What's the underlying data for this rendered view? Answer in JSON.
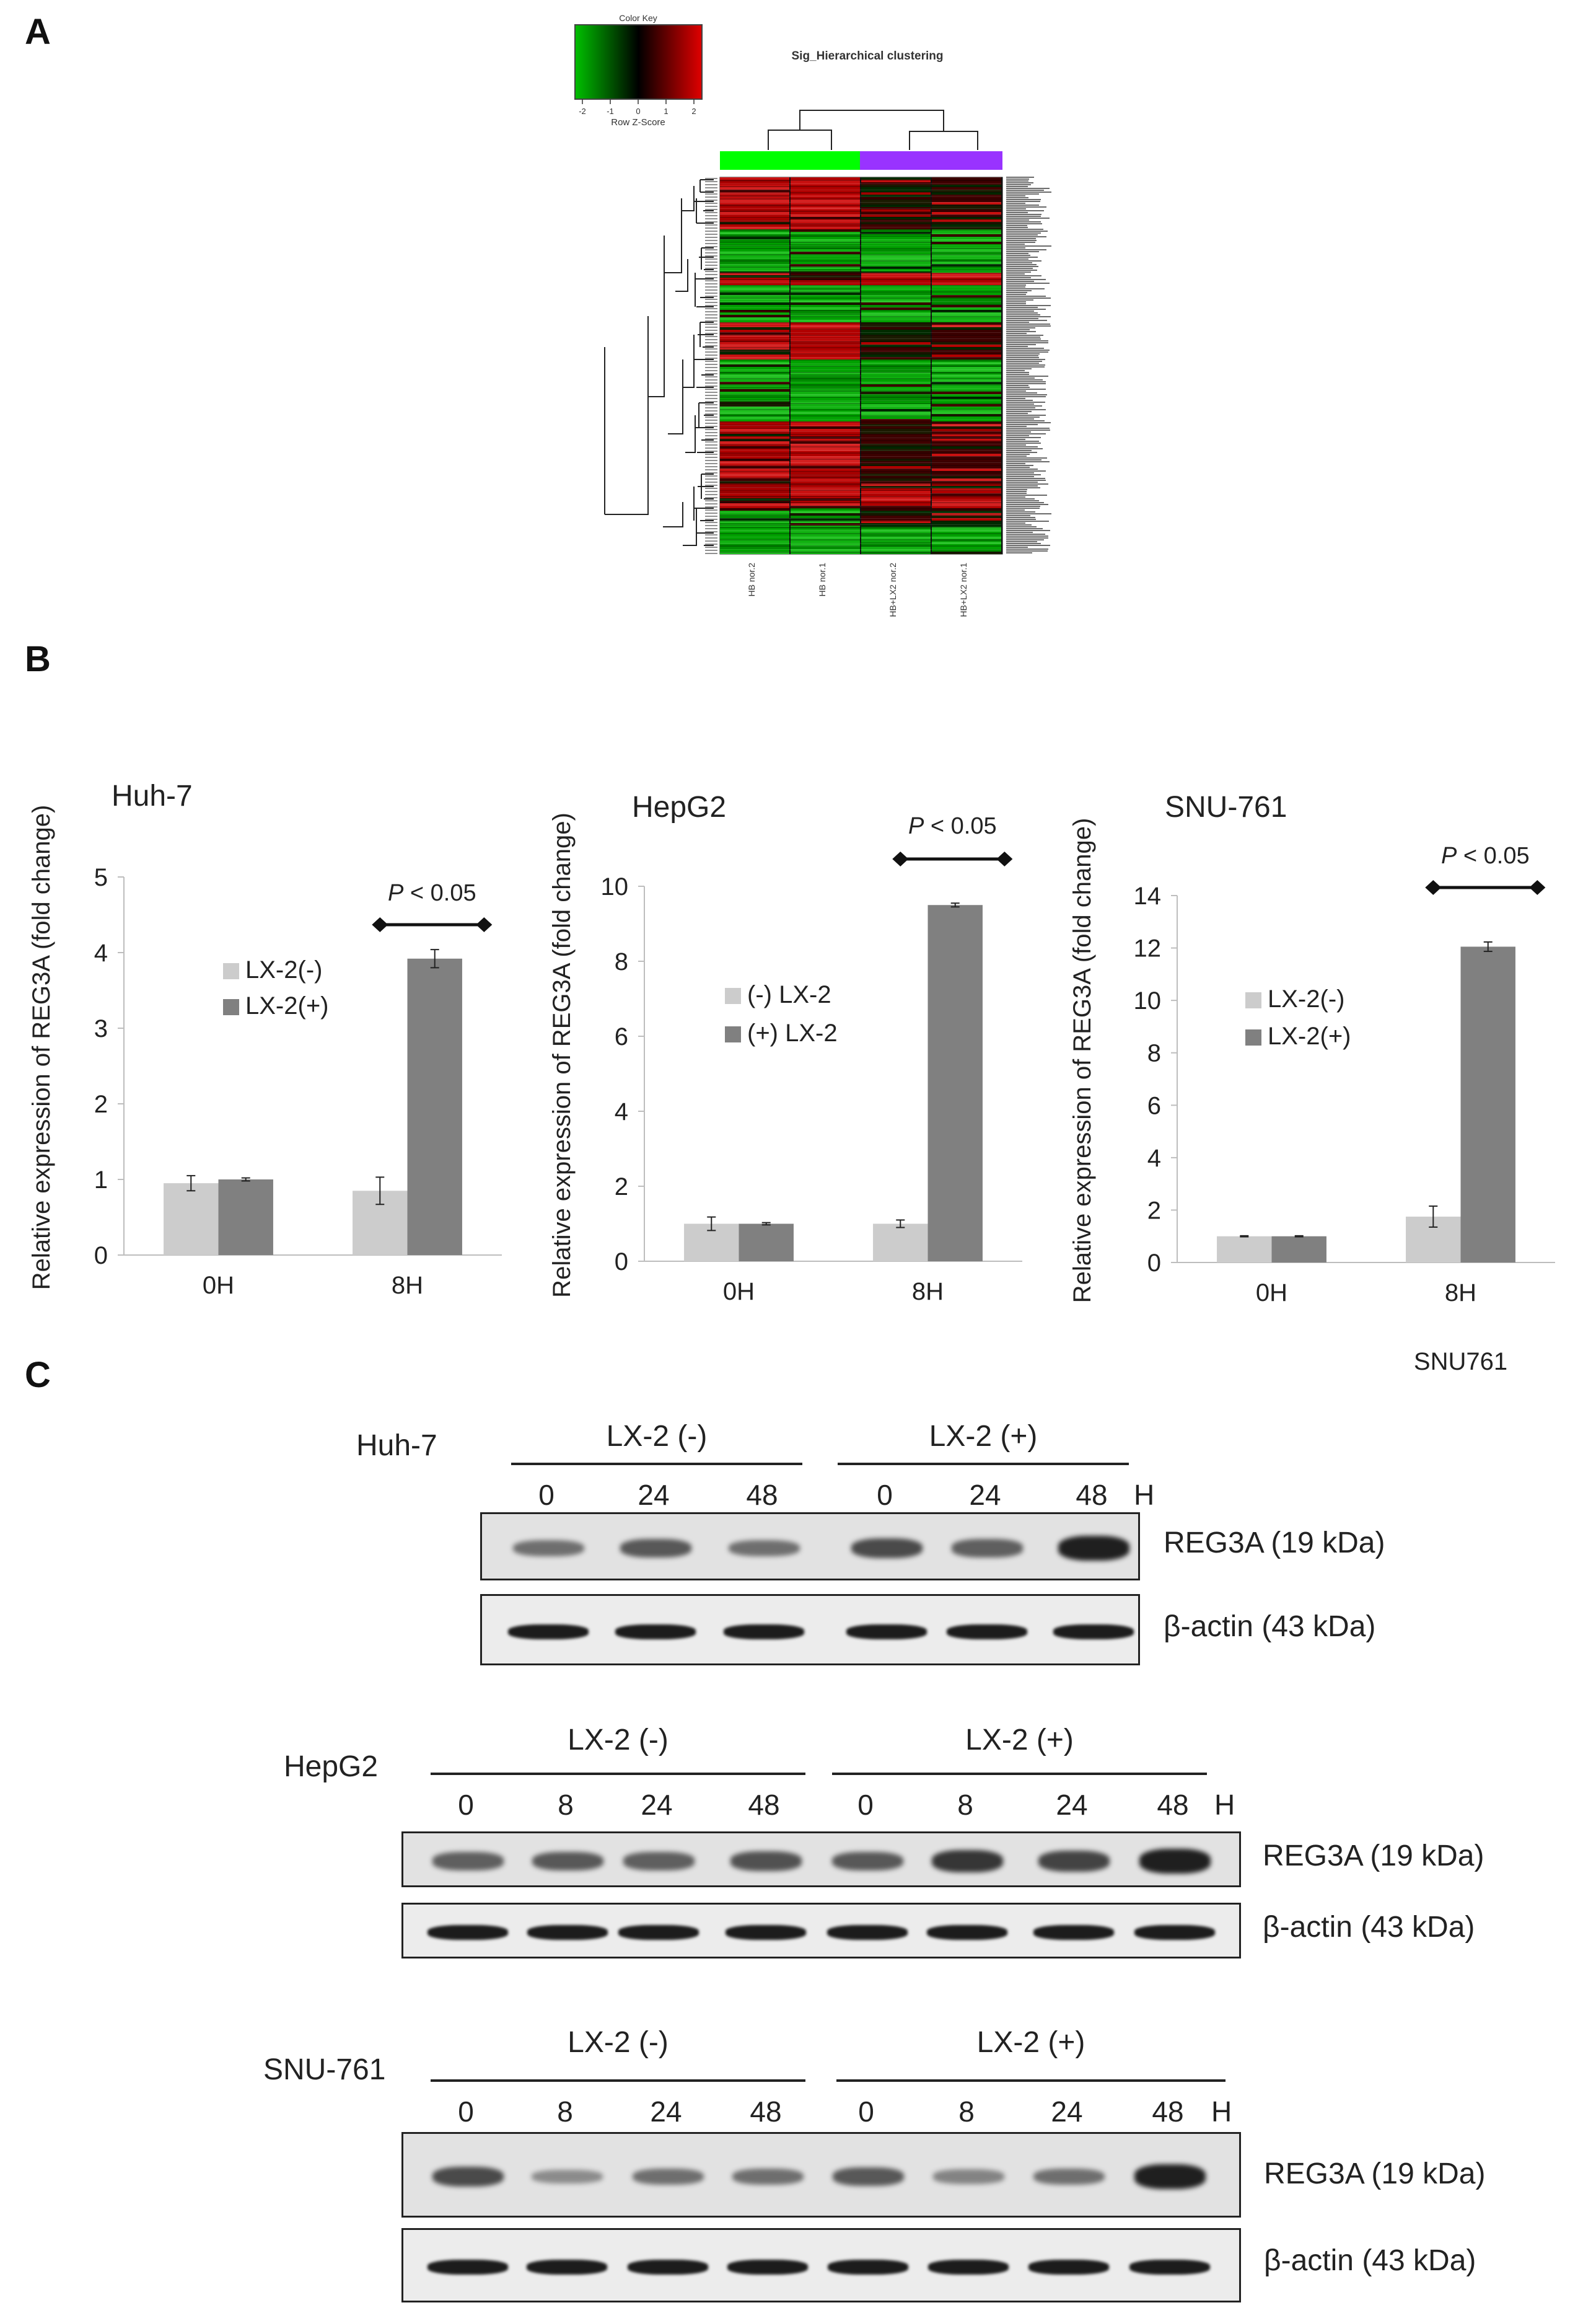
{
  "panels": {
    "A": "A",
    "B": "B",
    "C": "C"
  },
  "heatmap": {
    "color_key_title": "Color Key",
    "color_key_ticks": [
      "-2",
      "-1",
      "0",
      "1",
      "2"
    ],
    "color_key_label": "Row Z-Score",
    "title": "Sig_Hierarchical clustering",
    "columns": [
      "HB nor.2",
      "HB nor.1",
      "HB+LX2 nor.2",
      "HB+LX2 nor.1"
    ],
    "group_colors": [
      "#00ff00",
      "#9933ff"
    ],
    "colors": {
      "low": "#00c000",
      "mid": "#000000",
      "high": "#e00000"
    }
  },
  "chart_data": [
    {
      "type": "bar",
      "title": "Huh-7",
      "ylabel": "Relative expression of REG3A (fold change)",
      "xlabel": "",
      "categories": [
        "0H",
        "8H"
      ],
      "ylim": [
        0,
        5
      ],
      "yticks": [
        "0",
        "1",
        "2",
        "3",
        "4",
        "5"
      ],
      "series": [
        {
          "name": "LX-2(-)",
          "values": [
            0.95,
            0.85
          ],
          "errors": [
            0.1,
            0.18
          ],
          "color": "#cccccc"
        },
        {
          "name": "LX-2(+)",
          "values": [
            1.0,
            3.92
          ],
          "errors": [
            0.02,
            0.12
          ],
          "color": "#808080"
        }
      ],
      "annotation": {
        "p": "P",
        "rest": " < 0.05"
      },
      "legend_position": "upper-left"
    },
    {
      "type": "bar",
      "title": "HepG2",
      "ylabel": "Relative expression of REG3A (fold change)",
      "xlabel": "",
      "categories": [
        "0H",
        "8H"
      ],
      "ylim": [
        0,
        10
      ],
      "yticks": [
        "0",
        "2",
        "4",
        "6",
        "8",
        "10"
      ],
      "series": [
        {
          "name": "(-) LX-2",
          "values": [
            1.0,
            1.0
          ],
          "errors": [
            0.18,
            0.1
          ],
          "color": "#cccccc"
        },
        {
          "name": "(+) LX-2",
          "values": [
            1.0,
            9.5
          ],
          "errors": [
            0.03,
            0.05
          ],
          "color": "#808080"
        }
      ],
      "annotation": {
        "p": "P",
        "rest": " < 0.05"
      },
      "legend_position": "upper-left"
    },
    {
      "type": "bar",
      "title": "SNU-761",
      "ylabel": "Relative expression of REG3A (fold change)",
      "xlabel": "SNU761",
      "categories": [
        "0H",
        "8H"
      ],
      "ylim": [
        0,
        14
      ],
      "yticks": [
        "0",
        "2",
        "4",
        "6",
        "8",
        "10",
        "12",
        "14"
      ],
      "series": [
        {
          "name": "LX-2(-)",
          "values": [
            1.0,
            1.75
          ],
          "errors": [
            0.02,
            0.4
          ],
          "color": "#cccccc"
        },
        {
          "name": "LX-2(+)",
          "values": [
            1.0,
            12.05
          ],
          "errors": [
            0.02,
            0.18
          ],
          "color": "#808080"
        }
      ],
      "annotation": {
        "p": "P",
        "rest": " < 0.05"
      },
      "legend_position": "upper-left"
    }
  ],
  "blots": [
    {
      "cell_line": "Huh-7",
      "group_neg": "LX-2 (-)",
      "group_pos": "LX-2 (+)",
      "lanes": [
        "0",
        "24",
        "48",
        "0",
        "24",
        "48"
      ],
      "unit": "H",
      "row1": "REG3A (19 kDa)",
      "row2": "β-actin (43 kDa)",
      "reg3a_intensity": [
        0.45,
        0.6,
        0.45,
        0.7,
        0.55,
        1.0
      ]
    },
    {
      "cell_line": "HepG2",
      "group_neg": "LX-2 (-)",
      "group_pos": "LX-2 (+)",
      "lanes": [
        "0",
        "8",
        "24",
        "48",
        "0",
        "8",
        "24",
        "48"
      ],
      "unit": "H",
      "row1": "REG3A (19 kDa)",
      "row2": "β-actin (43 kDa)",
      "reg3a_intensity": [
        0.55,
        0.6,
        0.55,
        0.65,
        0.6,
        0.85,
        0.75,
        1.0
      ]
    },
    {
      "cell_line": "SNU-761",
      "group_neg": "LX-2 (-)",
      "group_pos": "LX-2 (+)",
      "lanes": [
        "0",
        "8",
        "24",
        "48",
        "0",
        "8",
        "24",
        "48"
      ],
      "unit": "H",
      "row1": "REG3A (19 kDa)",
      "row2": "β-actin (43 kDa)",
      "reg3a_intensity": [
        0.7,
        0.25,
        0.45,
        0.45,
        0.6,
        0.3,
        0.45,
        1.0
      ]
    }
  ]
}
